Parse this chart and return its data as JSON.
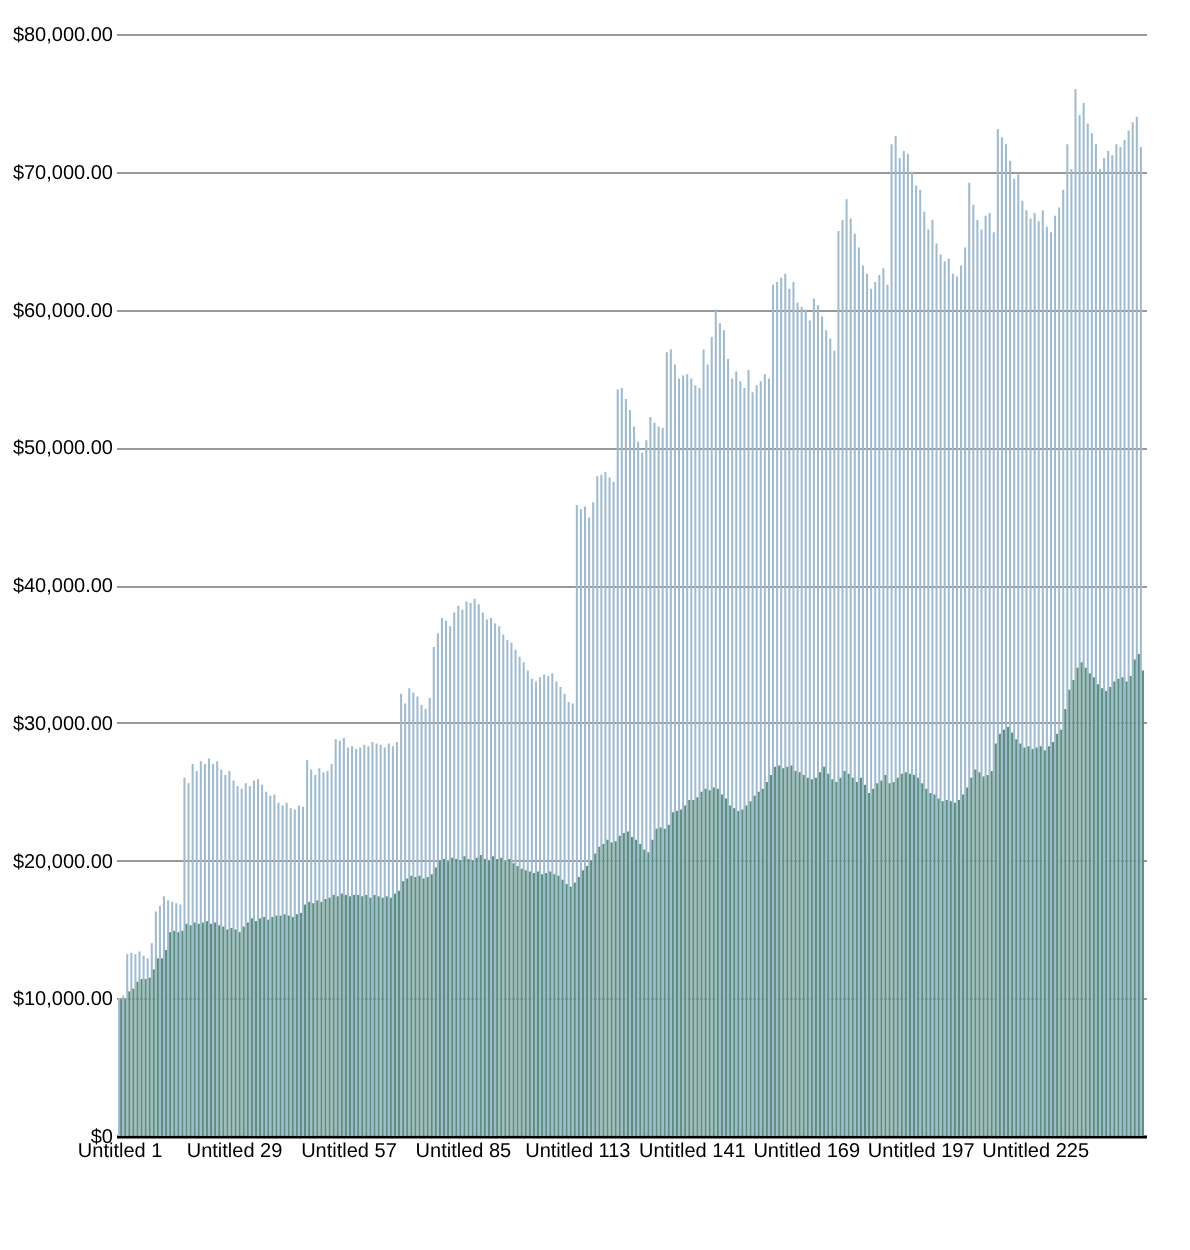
{
  "chart_data": {
    "type": "bar",
    "categories": [
      "Untitled 1",
      null,
      null,
      null,
      null,
      null,
      null,
      null,
      null,
      null,
      null,
      null,
      null,
      null,
      null,
      null,
      null,
      null,
      null,
      null,
      null,
      null,
      null,
      null,
      null,
      null,
      null,
      null,
      "Untitled 29",
      null,
      null,
      null,
      null,
      null,
      null,
      null,
      null,
      null,
      null,
      null,
      null,
      null,
      null,
      null,
      null,
      null,
      null,
      null,
      null,
      null,
      null,
      null,
      null,
      null,
      null,
      null,
      "Untitled 57",
      null,
      null,
      null,
      null,
      null,
      null,
      null,
      null,
      null,
      null,
      null,
      null,
      null,
      null,
      null,
      null,
      null,
      null,
      null,
      null,
      null,
      null,
      null,
      null,
      null,
      null,
      null,
      "Untitled 85",
      null,
      null,
      null,
      null,
      null,
      null,
      null,
      null,
      null,
      null,
      null,
      null,
      null,
      null,
      null,
      null,
      null,
      null,
      null,
      null,
      null,
      null,
      null,
      null,
      null,
      null,
      null,
      "Untitled 113",
      null,
      null,
      null,
      null,
      null,
      null,
      null,
      null,
      null,
      null,
      null,
      null,
      null,
      null,
      null,
      null,
      null,
      null,
      null,
      null,
      null,
      null,
      null,
      null,
      null,
      null,
      null,
      "Untitled 141",
      null,
      null,
      null,
      null,
      null,
      null,
      null,
      null,
      null,
      null,
      null,
      null,
      null,
      null,
      null,
      null,
      null,
      null,
      null,
      null,
      null,
      null,
      null,
      null,
      null,
      null,
      null,
      "Untitled 169",
      null,
      null,
      null,
      null,
      null,
      null,
      null,
      null,
      null,
      null,
      null,
      null,
      null,
      null,
      null,
      null,
      null,
      null,
      null,
      null,
      null,
      null,
      null,
      null,
      null,
      null,
      null,
      "Untitled 197",
      null,
      null,
      null,
      null,
      null,
      null,
      null,
      null,
      null,
      null,
      null,
      null,
      null,
      null,
      null,
      null,
      null,
      null,
      null,
      null,
      null,
      null,
      null,
      null,
      null,
      null,
      null,
      "Untitled 225",
      null,
      null,
      null,
      null,
      null,
      null,
      null,
      null,
      null,
      null,
      null,
      null,
      null,
      null,
      null,
      null,
      null,
      null,
      null,
      null,
      null,
      null,
      null,
      null,
      null,
      null
    ],
    "series": [
      {
        "color": "#9fbbd0",
        "values": [
          10000,
          10200,
          13200,
          13300,
          13200,
          13400,
          13100,
          12900,
          14000,
          16300,
          16700,
          17400,
          17100,
          17000,
          16900,
          16800,
          26000,
          25600,
          27000,
          26500,
          27200,
          27000,
          27400,
          27000,
          27200,
          26600,
          26200,
          26500,
          25800,
          25400,
          25200,
          25600,
          25400,
          25800,
          25900,
          25500,
          25000,
          24700,
          24800,
          24200,
          24000,
          24200,
          23800,
          23700,
          24000,
          23900,
          27300,
          26600,
          26200,
          26700,
          26400,
          26500,
          27000,
          28800,
          28700,
          28900,
          28200,
          28300,
          28100,
          28200,
          28400,
          28300,
          28600,
          28500,
          28400,
          28200,
          28500,
          28300,
          28600,
          32100,
          31400,
          32500,
          32200,
          31900,
          31300,
          31000,
          31800,
          35500,
          36500,
          37600,
          37400,
          37000,
          38000,
          38500,
          38200,
          38800,
          38700,
          39000,
          38600,
          38000,
          37500,
          37600,
          37200,
          37000,
          36400,
          36000,
          35800,
          35300,
          34800,
          34400,
          33800,
          33200,
          33000,
          33300,
          33500,
          33400,
          33600,
          33000,
          32600,
          32100,
          31500,
          31400,
          45800,
          45500,
          45700,
          44900,
          46000,
          47900,
          48000,
          48200,
          47800,
          47500,
          54200,
          54300,
          53500,
          52700,
          51500,
          50400,
          49600,
          50500,
          52200,
          51800,
          51500,
          51400,
          56900,
          57100,
          56000,
          55000,
          55200,
          55300,
          55000,
          54500,
          54300,
          57100,
          56000,
          58000,
          60000,
          59000,
          58500,
          56400,
          55000,
          55500,
          54800,
          54300,
          55600,
          54000,
          54500,
          54800,
          55300,
          55000,
          61800,
          62000,
          62300,
          62600,
          61500,
          62000,
          60500,
          60200,
          60000,
          59200,
          60800,
          60300,
          59500,
          58500,
          57900,
          57000,
          65700,
          66500,
          68000,
          66600,
          65500,
          64500,
          63200,
          62600,
          61500,
          62000,
          62500,
          63000,
          61800,
          72000,
          72600,
          71000,
          71500,
          71300,
          70000,
          69000,
          68700,
          67100,
          65800,
          66500,
          64800,
          64000,
          63500,
          63700,
          62600,
          62400,
          63200,
          64500,
          69200,
          67600,
          66500,
          65800,
          66800,
          67000,
          65600,
          73100,
          72500,
          72000,
          70800,
          69500,
          69800,
          67900,
          67200,
          66600,
          67000,
          66400,
          67200,
          66000,
          65600,
          66800,
          67400,
          68700,
          72000,
          70200,
          76000,
          74100,
          75000,
          73500,
          72800,
          72000,
          70200,
          71000,
          71500,
          71200,
          72000,
          71800,
          72300,
          73000,
          73600,
          74000,
          71800
        ]
      },
      {
        "color": "#5b8f7a",
        "values": [
          9900,
          9900,
          10500,
          10700,
          11200,
          11400,
          11400,
          11500,
          12100,
          12900,
          12900,
          13500,
          14800,
          14900,
          14800,
          14900,
          15400,
          15300,
          15500,
          15400,
          15500,
          15600,
          15400,
          15500,
          15300,
          15200,
          15000,
          15100,
          15000,
          14800,
          15200,
          15500,
          15800,
          15600,
          15800,
          15900,
          15700,
          15900,
          16000,
          16000,
          16100,
          16000,
          15900,
          16100,
          16200,
          16800,
          17000,
          16900,
          17100,
          17000,
          17200,
          17300,
          17500,
          17400,
          17600,
          17500,
          17400,
          17500,
          17500,
          17400,
          17500,
          17300,
          17500,
          17400,
          17300,
          17400,
          17300,
          17600,
          17800,
          18500,
          18700,
          18900,
          18800,
          18900,
          18700,
          18800,
          19000,
          19500,
          20000,
          20100,
          19900,
          20200,
          20100,
          20000,
          20300,
          20100,
          20000,
          20200,
          20400,
          20100,
          20000,
          20300,
          20100,
          20200,
          19900,
          20100,
          19800,
          19600,
          19400,
          19300,
          19200,
          19100,
          19200,
          19000,
          19100,
          19200,
          19000,
          18900,
          18600,
          18300,
          18100,
          18400,
          18800,
          19300,
          19600,
          20000,
          20500,
          21000,
          21200,
          21500,
          21300,
          21400,
          21800,
          22000,
          22100,
          21700,
          21500,
          21200,
          20800,
          20600,
          21500,
          22300,
          22400,
          22300,
          22600,
          23500,
          23600,
          23700,
          24000,
          24400,
          24400,
          24600,
          25000,
          25200,
          25100,
          25300,
          25200,
          24800,
          24500,
          24000,
          23800,
          23600,
          23700,
          24000,
          24300,
          24700,
          25000,
          25200,
          25700,
          26200,
          26800,
          26900,
          26700,
          26800,
          26900,
          26500,
          26400,
          26200,
          26000,
          25900,
          26000,
          26400,
          26800,
          26300,
          25900,
          25700,
          26000,
          26500,
          26300,
          26000,
          25700,
          26000,
          25500,
          24900,
          25200,
          25600,
          25800,
          26200,
          25600,
          25700,
          26000,
          26300,
          26400,
          26300,
          26200,
          26000,
          25600,
          25200,
          24900,
          24800,
          24500,
          24300,
          24400,
          24300,
          24200,
          24400,
          24800,
          25300,
          26000,
          26600,
          26400,
          26100,
          26200,
          26500,
          28500,
          29200,
          29500,
          29700,
          29300,
          28800,
          28500,
          28200,
          28300,
          28100,
          28200,
          28300,
          28000,
          28300,
          28600,
          29200,
          29500,
          31000,
          32400,
          33100,
          34000,
          34400,
          34000,
          33600,
          33300,
          32800,
          32500,
          32300,
          32600,
          33000,
          33200,
          33300,
          33000,
          33400,
          34600,
          35000,
          33800
        ]
      }
    ],
    "ylim": [
      0,
      80000
    ],
    "yticks": [
      {
        "value": 0,
        "label": "$0"
      },
      {
        "value": 10000,
        "label": "$10,000.00"
      },
      {
        "value": 20000,
        "label": "$20,000.00"
      },
      {
        "value": 30000,
        "label": "$30,000.00"
      },
      {
        "value": 40000,
        "label": "$40,000.00"
      },
      {
        "value": 50000,
        "label": "$50,000.00"
      },
      {
        "value": 60000,
        "label": "$60,000.00"
      },
      {
        "value": 70000,
        "label": "$70,000.00"
      },
      {
        "value": 80000,
        "label": "$80,000.00"
      }
    ],
    "grid": "y"
  }
}
